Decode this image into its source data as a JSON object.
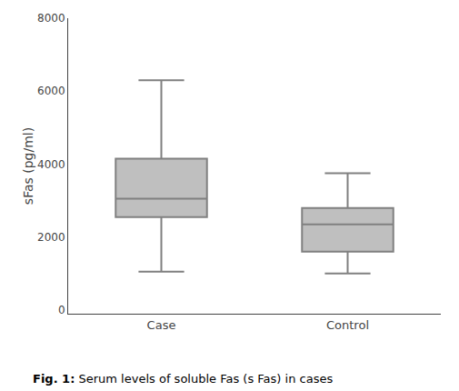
{
  "chart_data": {
    "type": "box",
    "categories": [
      "Case",
      "Control"
    ],
    "stats": {
      "lowerfence": [
        1050,
        1000
      ],
      "q1": [
        2550,
        1600
      ],
      "median": [
        3050,
        2350
      ],
      "q3": [
        4150,
        2800
      ],
      "upperfence": [
        6300,
        3750
      ]
    },
    "ylabel": "sFas (pg/ml)",
    "ylim": [
      -100,
      8000
    ],
    "yticks": [
      0,
      2000,
      4000,
      6000,
      8000
    ],
    "color": "#808080",
    "grid": false,
    "caption": {
      "bold": "Fig. 1:",
      "text": " Serum levels of soluble Fas (s Fas) in cases"
    }
  }
}
